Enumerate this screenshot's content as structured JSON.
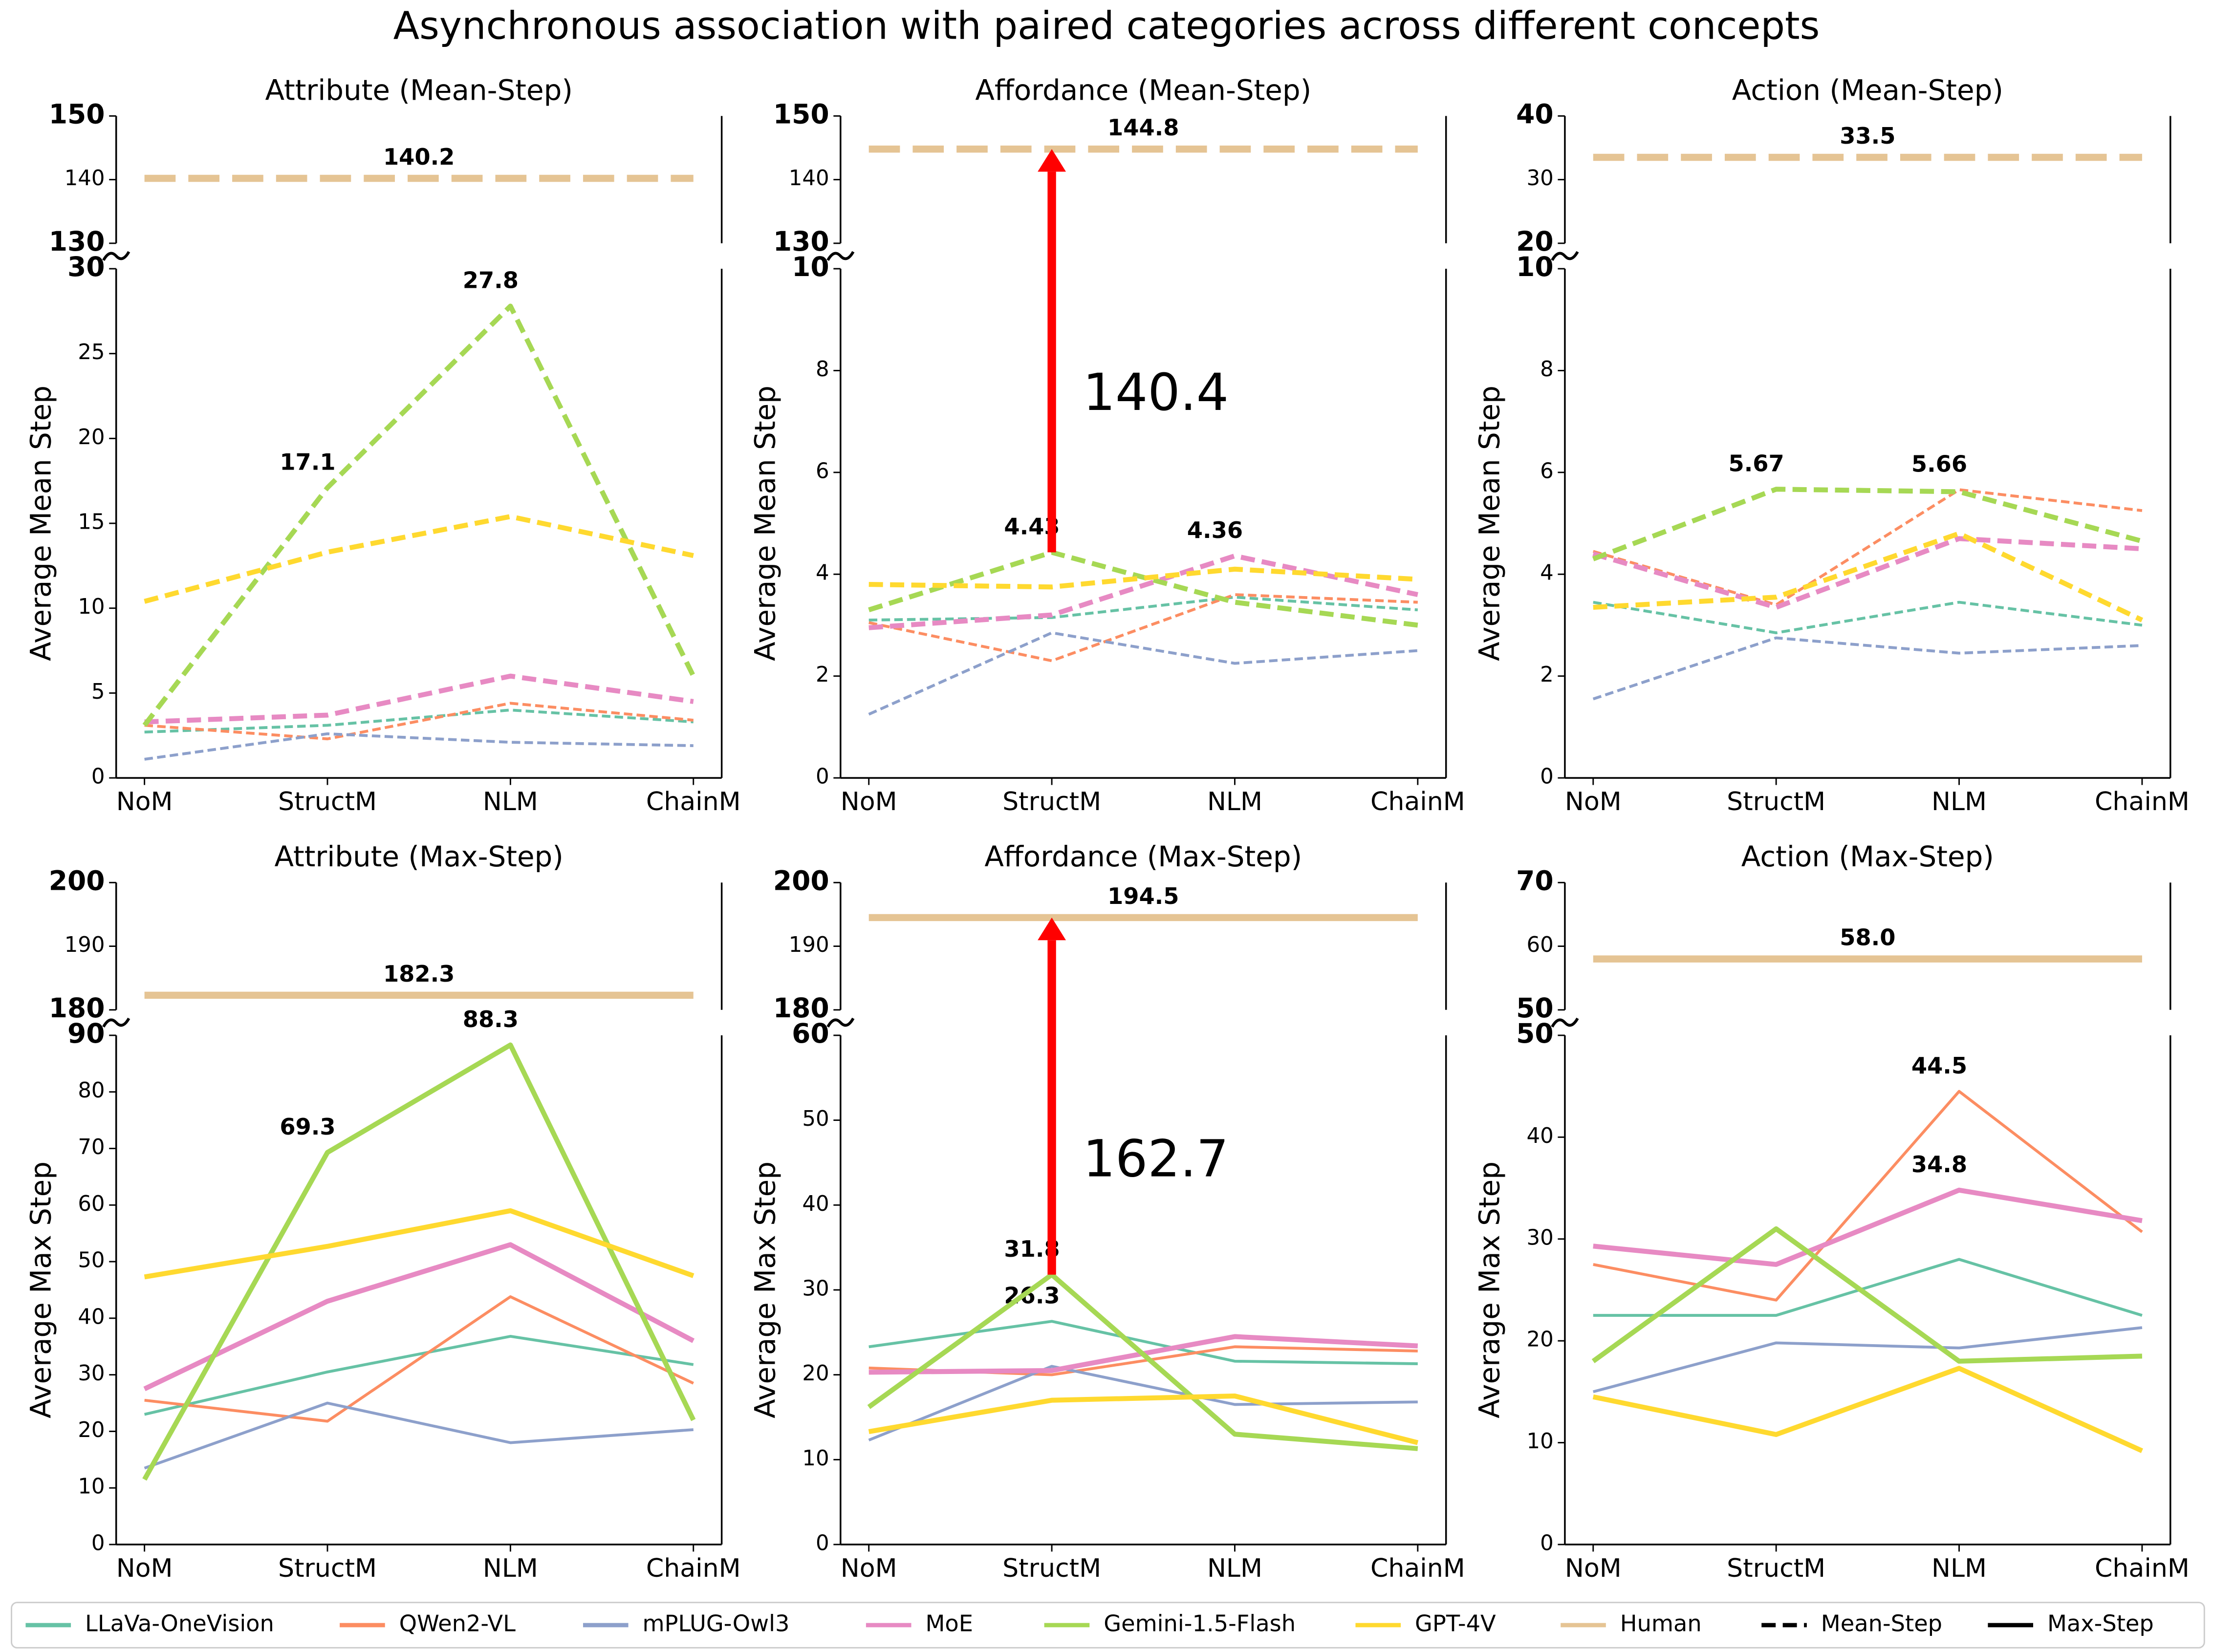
{
  "title": "Asynchronous association with paired categories across different concepts",
  "legend": {
    "entries": [
      {
        "name": "LLaVa-OneVision",
        "color": "#66c2a5"
      },
      {
        "name": "QWen2-VL",
        "color": "#fc8d62"
      },
      {
        "name": "mPLUG-Owl3",
        "color": "#8da0cb"
      },
      {
        "name": "MoE",
        "color": "#e78ac3"
      },
      {
        "name": "Gemini-1.5-Flash",
        "color": "#a6d854"
      },
      {
        "name": "GPT-4V",
        "color": "#ffd92f"
      },
      {
        "name": "Human",
        "color": "#e5c494"
      }
    ],
    "styles": [
      {
        "name": "Mean-Step",
        "style": "dashed",
        "color": "#000000"
      },
      {
        "name": "Max-Step",
        "style": "solid",
        "color": "#000000"
      }
    ]
  },
  "chart_data": [
    {
      "type": "line",
      "title": "Attribute (Mean-Step)",
      "ylabel": "Average Mean Step",
      "linestyle": "dashed",
      "categories": [
        "NoM",
        "StructM",
        "NLM",
        "ChainM"
      ],
      "top_ylim": [
        130,
        150
      ],
      "top_yticks": [
        130,
        140,
        150
      ],
      "ylim": [
        0,
        30
      ],
      "yticks": [
        0,
        5,
        10,
        15,
        20,
        25,
        30
      ],
      "human": {
        "value": 140.2,
        "value_label": "140.2"
      },
      "series": [
        {
          "values": [
            2.7,
            3.1,
            4.0,
            3.3
          ]
        },
        {
          "values": [
            3.1,
            2.3,
            4.4,
            3.4
          ]
        },
        {
          "values": [
            1.1,
            2.6,
            2.1,
            1.9
          ]
        },
        {
          "values": [
            3.3,
            3.7,
            6.0,
            4.5
          ]
        },
        {
          "values": [
            3.1,
            17.1,
            27.8,
            6.0
          ],
          "value_labels": [
            null,
            "17.1",
            "27.8",
            null
          ]
        },
        {
          "values": [
            10.4,
            13.3,
            15.4,
            13.1
          ]
        }
      ]
    },
    {
      "type": "line",
      "title": "Affordance (Mean-Step)",
      "ylabel": "Average Mean Step",
      "linestyle": "dashed",
      "categories": [
        "NoM",
        "StructM",
        "NLM",
        "ChainM"
      ],
      "top_ylim": [
        130,
        150
      ],
      "top_yticks": [
        130,
        140,
        150
      ],
      "ylim": [
        0,
        10
      ],
      "yticks": [
        0,
        2,
        4,
        6,
        8,
        10
      ],
      "human": {
        "value": 144.8,
        "value_label": "144.8"
      },
      "arrow": {
        "from": 4.43,
        "to": 144.8,
        "label": "140.4",
        "color": "#ff0000"
      },
      "series": [
        {
          "values": [
            3.1,
            3.15,
            3.55,
            3.3
          ]
        },
        {
          "values": [
            3.05,
            2.3,
            3.6,
            3.45
          ]
        },
        {
          "values": [
            1.25,
            2.85,
            2.25,
            2.5
          ]
        },
        {
          "values": [
            2.95,
            3.2,
            4.36,
            3.6
          ],
          "value_labels": [
            null,
            null,
            "4.36",
            null
          ]
        },
        {
          "values": [
            3.3,
            4.43,
            3.45,
            3.0
          ],
          "value_labels": [
            null,
            "4.43",
            null,
            null
          ]
        },
        {
          "values": [
            3.8,
            3.75,
            4.1,
            3.9
          ]
        }
      ]
    },
    {
      "type": "line",
      "title": "Action (Mean-Step)",
      "ylabel": "Average Mean Step",
      "linestyle": "dashed",
      "categories": [
        "NoM",
        "StructM",
        "NLM",
        "ChainM"
      ],
      "top_ylim": [
        20,
        40
      ],
      "top_yticks": [
        20,
        30,
        40
      ],
      "ylim": [
        0,
        10
      ],
      "yticks": [
        0,
        2,
        4,
        6,
        8,
        10
      ],
      "human": {
        "value": 33.5,
        "value_label": "33.5"
      },
      "series": [
        {
          "values": [
            3.45,
            2.85,
            3.45,
            3.0
          ]
        },
        {
          "values": [
            4.45,
            3.4,
            5.66,
            5.25
          ],
          "value_labels": [
            null,
            null,
            "5.66",
            null
          ]
        },
        {
          "values": [
            1.55,
            2.75,
            2.45,
            2.6
          ]
        },
        {
          "values": [
            4.4,
            3.35,
            4.7,
            4.5
          ]
        },
        {
          "values": [
            4.3,
            5.67,
            5.62,
            4.65
          ],
          "value_labels": [
            null,
            "5.67",
            null,
            null
          ]
        },
        {
          "values": [
            3.35,
            3.55,
            4.8,
            3.1
          ]
        }
      ]
    },
    {
      "type": "line",
      "title": "Attribute (Max-Step)",
      "ylabel": "Average Max Step",
      "linestyle": "solid",
      "categories": [
        "NoM",
        "StructM",
        "NLM",
        "ChainM"
      ],
      "top_ylim": [
        180,
        200
      ],
      "top_yticks": [
        180,
        190,
        200
      ],
      "ylim": [
        0,
        90
      ],
      "yticks": [
        0,
        10,
        20,
        30,
        40,
        50,
        60,
        70,
        80,
        90
      ],
      "human": {
        "value": 182.3,
        "value_label": "182.3"
      },
      "series": [
        {
          "values": [
            23,
            30.5,
            36.8,
            31.8
          ]
        },
        {
          "values": [
            25.5,
            21.8,
            43.8,
            28.5
          ]
        },
        {
          "values": [
            13.5,
            25,
            18,
            20.3
          ]
        },
        {
          "values": [
            27.5,
            43,
            53,
            36
          ]
        },
        {
          "values": [
            11.5,
            69.3,
            88.3,
            22
          ],
          "value_labels": [
            null,
            "69.3",
            "88.3",
            null
          ]
        },
        {
          "values": [
            47.3,
            52.7,
            59,
            47.5
          ]
        }
      ]
    },
    {
      "type": "line",
      "title": "Affordance (Max-Step)",
      "ylabel": "Average Max Step",
      "linestyle": "solid",
      "categories": [
        "NoM",
        "StructM",
        "NLM",
        "ChainM"
      ],
      "top_ylim": [
        180,
        200
      ],
      "top_yticks": [
        180,
        190,
        200
      ],
      "ylim": [
        0,
        60
      ],
      "yticks": [
        0,
        10,
        20,
        30,
        40,
        50,
        60
      ],
      "human": {
        "value": 194.5,
        "value_label": "194.5"
      },
      "arrow": {
        "from": 31.8,
        "to": 194.5,
        "label": "162.7",
        "color": "#ff0000"
      },
      "series": [
        {
          "values": [
            23.3,
            26.3,
            21.6,
            21.3
          ],
          "value_labels": [
            null,
            "26.3",
            null,
            null
          ]
        },
        {
          "values": [
            20.8,
            20.0,
            23.3,
            22.8
          ]
        },
        {
          "values": [
            12.3,
            21.0,
            16.5,
            16.8
          ]
        },
        {
          "values": [
            20.3,
            20.5,
            24.5,
            23.4
          ]
        },
        {
          "values": [
            16.2,
            31.8,
            13.0,
            11.3
          ],
          "value_labels": [
            null,
            "31.8",
            null,
            null
          ]
        },
        {
          "values": [
            13.3,
            17.0,
            17.5,
            12.0
          ]
        }
      ]
    },
    {
      "type": "line",
      "title": "Action (Max-Step)",
      "ylabel": "Average Max Step",
      "linestyle": "solid",
      "categories": [
        "NoM",
        "StructM",
        "NLM",
        "ChainM"
      ],
      "top_ylim": [
        50,
        70
      ],
      "top_yticks": [
        50,
        60,
        70
      ],
      "ylim": [
        0,
        50
      ],
      "yticks": [
        0,
        10,
        20,
        30,
        40,
        50
      ],
      "human": {
        "value": 58,
        "value_label": "58.0"
      },
      "series": [
        {
          "values": [
            22.5,
            22.5,
            28.0,
            22.5
          ]
        },
        {
          "values": [
            27.5,
            24.0,
            44.5,
            30.7
          ],
          "value_labels": [
            null,
            null,
            "44.5",
            null
          ]
        },
        {
          "values": [
            15.0,
            19.8,
            19.3,
            21.3
          ]
        },
        {
          "values": [
            29.3,
            27.5,
            34.8,
            31.8
          ],
          "value_labels": [
            null,
            null,
            "34.8",
            null
          ]
        },
        {
          "values": [
            18.0,
            31.0,
            18.0,
            18.5
          ]
        },
        {
          "values": [
            14.5,
            10.8,
            17.3,
            9.2
          ]
        }
      ]
    }
  ]
}
